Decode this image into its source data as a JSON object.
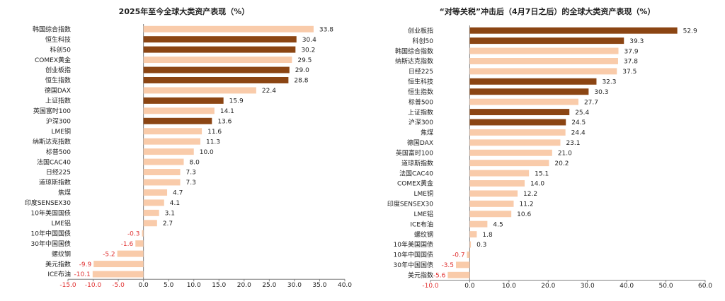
{
  "colors": {
    "dark": "#8B4513",
    "light": "#F9CBAA",
    "negative_label": "#e03030",
    "axis": "#7f7f7f",
    "text": "#222222"
  },
  "chart_data": [
    {
      "type": "bar",
      "orientation": "horizontal",
      "title": "2025年至今全球大类资产表现（%）",
      "categories": [
        "韩国综合指数",
        "恒生科技",
        "科创50",
        "COMEX黄金",
        "创业板指",
        "恒生指数",
        "德国DAX",
        "上证指数",
        "英国富时100",
        "沪深300",
        "LME铜",
        "纳斯达克指数",
        "标普500",
        "法国CAC40",
        "日经225",
        "道琼斯指数",
        "焦煤",
        "印度SENSEX30",
        "10年美国国债",
        "LME铝",
        "10年中国国债",
        "30年中国国债",
        "螺纹钢",
        "美元指数",
        "ICE布油"
      ],
      "values": [
        33.8,
        30.4,
        30.2,
        29.5,
        29.0,
        28.8,
        22.4,
        15.9,
        14.1,
        13.6,
        11.6,
        11.3,
        10.0,
        8.0,
        7.3,
        7.3,
        4.7,
        4.1,
        3.1,
        2.7,
        -0.3,
        -1.6,
        -5.2,
        -9.9,
        -10.1
      ],
      "highlight": [
        false,
        true,
        true,
        false,
        true,
        true,
        false,
        true,
        false,
        true,
        false,
        false,
        false,
        false,
        false,
        false,
        false,
        false,
        false,
        false,
        false,
        false,
        false,
        false,
        false
      ],
      "value_labels": [
        "33.8",
        "30.4",
        "30.2",
        "29.5",
        "29.0",
        "28.8",
        "22.4",
        "15.9",
        "14.1",
        "13.6",
        "11.6",
        "11.3",
        "10.0",
        "8.0",
        "7.3",
        "7.3",
        "4.7",
        "4.1",
        "3.1",
        "2.7",
        "-0.3",
        "-1.6",
        "-5.2",
        "-9.9",
        "-10.1"
      ],
      "xlim": [
        -15,
        40
      ],
      "xticks": [
        -15,
        -10,
        -5,
        0,
        5,
        10,
        15,
        20,
        25,
        30,
        35,
        40
      ],
      "xtick_labels": [
        "-15.0",
        "-10.0",
        "-5.0",
        "0.0",
        "5.0",
        "10.0",
        "15.0",
        "20.0",
        "25.0",
        "30.0",
        "35.0",
        "40.0"
      ]
    },
    {
      "type": "bar",
      "orientation": "horizontal",
      "title": "“对等关税”冲击后（4月7日之后）的全球大类资产表现（%）",
      "categories": [
        "创业板指",
        "科创50",
        "韩国综合指数",
        "纳斯达克指数",
        "日经225",
        "恒生科技",
        "恒生指数",
        "标普500",
        "上证指数",
        "沪深300",
        "焦煤",
        "德国DAX",
        "英国富时100",
        "道琼斯指数",
        "法国CAC40",
        "COMEX黄金",
        "LME铜",
        "印度SENSEX30",
        "LME铝",
        "ICE布油",
        "螺纹钢",
        "10年美国国债",
        "10年中国国债",
        "30年中国国债",
        "美元指数"
      ],
      "values": [
        52.9,
        39.3,
        37.9,
        37.8,
        37.5,
        32.3,
        30.3,
        27.7,
        25.4,
        24.5,
        24.4,
        23.1,
        21.0,
        20.2,
        15.1,
        14.0,
        12.2,
        11.2,
        10.6,
        4.5,
        1.8,
        0.3,
        -0.7,
        -3.5,
        -5.6
      ],
      "highlight": [
        true,
        true,
        false,
        false,
        false,
        true,
        true,
        false,
        true,
        true,
        false,
        false,
        false,
        false,
        false,
        false,
        false,
        false,
        false,
        false,
        false,
        false,
        false,
        false,
        false
      ],
      "value_labels": [
        "52.9",
        "39.3",
        "37.9",
        "37.8",
        "37.5",
        "32.3",
        "30.3",
        "27.7",
        "25.4",
        "24.5",
        "24.4",
        "23.1",
        "21.0",
        "20.2",
        "15.1",
        "14.0",
        "12.2",
        "11.2",
        "10.6",
        "4.5",
        "1.8",
        "0.3",
        "-0.7",
        "-3.5",
        "-5.6"
      ],
      "xlim": [
        -10,
        60
      ],
      "xticks": [
        -10,
        0,
        10,
        20,
        30,
        40,
        50,
        60
      ],
      "xtick_labels": [
        "-10.0",
        "0.0",
        "10.0",
        "20.0",
        "30.0",
        "40.0",
        "50.0",
        "60.0"
      ]
    }
  ]
}
